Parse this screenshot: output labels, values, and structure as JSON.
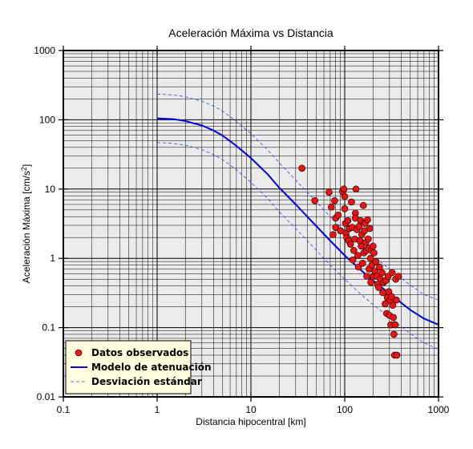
{
  "chart_data": {
    "type": "scatter",
    "title": "Aceleración Máxima vs Distancia",
    "xlabel": "Distancia hipocentral [km]",
    "ylabel": "Aceleración Máxima [cm/s",
    "ylabel_sup": "2",
    "ylabel_end": "]",
    "xscale": "log",
    "yscale": "log",
    "xlim": [
      0.1,
      1000
    ],
    "ylim": [
      0.01,
      1000
    ],
    "grid": true,
    "legend_position": "bottom-left",
    "x_ticks": [
      {
        "value": 0.1,
        "label": "0.1"
      },
      {
        "value": 1,
        "label": "1"
      },
      {
        "value": 10,
        "label": "10"
      },
      {
        "value": 100,
        "label": "100"
      },
      {
        "value": 1000,
        "label": "1000"
      }
    ],
    "y_ticks": [
      {
        "value": 0.01,
        "label": "0.01"
      },
      {
        "value": 0.1,
        "label": "0.1"
      },
      {
        "value": 1,
        "label": "1"
      },
      {
        "value": 10,
        "label": "10"
      },
      {
        "value": 100,
        "label": "100"
      },
      {
        "value": 1000,
        "label": "1000"
      }
    ],
    "colors": {
      "background": "#ebebeb",
      "points": "#ee1111",
      "model": "#0000dd",
      "deviation": "#3344ee",
      "legend_bg": "#ffffdd"
    },
    "series": [
      {
        "name": "Datos observados",
        "kind": "scatter",
        "points": [
          [
            35,
            20
          ],
          [
            48,
            6.8
          ],
          [
            68,
            9
          ],
          [
            72,
            5.5
          ],
          [
            75,
            2.2
          ],
          [
            78,
            6.8
          ],
          [
            80,
            3.8
          ],
          [
            80,
            2.8
          ],
          [
            85,
            4.2
          ],
          [
            90,
            2.5
          ],
          [
            95,
            9.2
          ],
          [
            98,
            10
          ],
          [
            100,
            7.8
          ],
          [
            100,
            5.2
          ],
          [
            102,
            3.2
          ],
          [
            103,
            2.3
          ],
          [
            105,
            2
          ],
          [
            108,
            3.5
          ],
          [
            110,
            1.8
          ],
          [
            112,
            2.7
          ],
          [
            115,
            1.6
          ],
          [
            118,
            6.5
          ],
          [
            120,
            2.8
          ],
          [
            122,
            0.95
          ],
          [
            125,
            1.3
          ],
          [
            128,
            1.9
          ],
          [
            130,
            4.5
          ],
          [
            130,
            3.8
          ],
          [
            132,
            10
          ],
          [
            135,
            2.6
          ],
          [
            138,
            1.1
          ],
          [
            140,
            0.75
          ],
          [
            142,
            2.9
          ],
          [
            145,
            1.8
          ],
          [
            148,
            3.5
          ],
          [
            150,
            1.5
          ],
          [
            152,
            2.2
          ],
          [
            155,
            0.85
          ],
          [
            158,
            5.8
          ],
          [
            160,
            1.2
          ],
          [
            162,
            2.5
          ],
          [
            165,
            3.2
          ],
          [
            168,
            1.7
          ],
          [
            170,
            1.3
          ],
          [
            172,
            0.55
          ],
          [
            175,
            3.6
          ],
          [
            178,
            1.9
          ],
          [
            180,
            1.4
          ],
          [
            182,
            0.7
          ],
          [
            185,
            2.7
          ],
          [
            188,
            1
          ],
          [
            190,
            0.45
          ],
          [
            192,
            1.3
          ],
          [
            195,
            0.8
          ],
          [
            200,
            1.5
          ],
          [
            202,
            0.55
          ],
          [
            205,
            1.2
          ],
          [
            210,
            0.65
          ],
          [
            215,
            0.9
          ],
          [
            220,
            0.55
          ],
          [
            225,
            0.42
          ],
          [
            230,
            0.38
          ],
          [
            235,
            0.75
          ],
          [
            240,
            0.5
          ],
          [
            250,
            0.62
          ],
          [
            255,
            0.32
          ],
          [
            260,
            0.45
          ],
          [
            270,
            0.22
          ],
          [
            275,
            0.48
          ],
          [
            280,
            0.16
          ],
          [
            285,
            0.27
          ],
          [
            290,
            0.55
          ],
          [
            295,
            0.33
          ],
          [
            300,
            0.15
          ],
          [
            305,
            0.25
          ],
          [
            310,
            0.11
          ],
          [
            315,
            0.28
          ],
          [
            320,
            0.62
          ],
          [
            325,
            0.21
          ],
          [
            330,
            0.14
          ],
          [
            335,
            0.08
          ],
          [
            340,
            0.04
          ],
          [
            345,
            0.11
          ],
          [
            350,
            0.5
          ],
          [
            355,
            0.25
          ],
          [
            360,
            0.04
          ],
          [
            375,
            0.55
          ]
        ]
      },
      {
        "name": "Modelo de atenuación",
        "kind": "line",
        "x": [
          1,
          1.5,
          2,
          3,
          4,
          5,
          7,
          10,
          15,
          20,
          30,
          50,
          70,
          100,
          150,
          200,
          300,
          500,
          700,
          1000
        ],
        "y": [
          105,
          102,
          96,
          83,
          70,
          59,
          42,
          28,
          16.5,
          10.5,
          6,
          2.9,
          1.8,
          1.1,
          0.67,
          0.48,
          0.31,
          0.18,
          0.135,
          0.11
        ]
      },
      {
        "name": "Desviación estándar",
        "kind": "dashed",
        "x": [
          1,
          1.5,
          2,
          3,
          4,
          5,
          7,
          10,
          15,
          20,
          30,
          50,
          70,
          100,
          150,
          200,
          300,
          500,
          700,
          1000
        ],
        "y": [
          235,
          228,
          215,
          185,
          158,
          133,
          95,
          63,
          37,
          24,
          13.5,
          6.5,
          4,
          2.5,
          1.5,
          1.08,
          0.7,
          0.41,
          0.3,
          0.25
        ]
      },
      {
        "name": "Desviación estándar (inferior)",
        "kind": "dashed",
        "x": [
          1,
          1.5,
          2,
          3,
          4,
          5,
          7,
          10,
          15,
          20,
          30,
          50,
          70,
          100,
          150,
          200,
          300,
          500,
          700,
          1000
        ],
        "y": [
          47,
          45.5,
          43,
          37,
          31.5,
          26.5,
          19,
          12.5,
          7.4,
          4.7,
          2.7,
          1.3,
          0.8,
          0.5,
          0.3,
          0.215,
          0.14,
          0.082,
          0.06,
          0.049
        ]
      }
    ],
    "legend": [
      {
        "label": "Datos observados",
        "symbol": "circle"
      },
      {
        "label": "Modelo de atenuación",
        "symbol": "solid-line"
      },
      {
        "label": "Desviación estándar",
        "symbol": "dashed-line"
      }
    ]
  }
}
